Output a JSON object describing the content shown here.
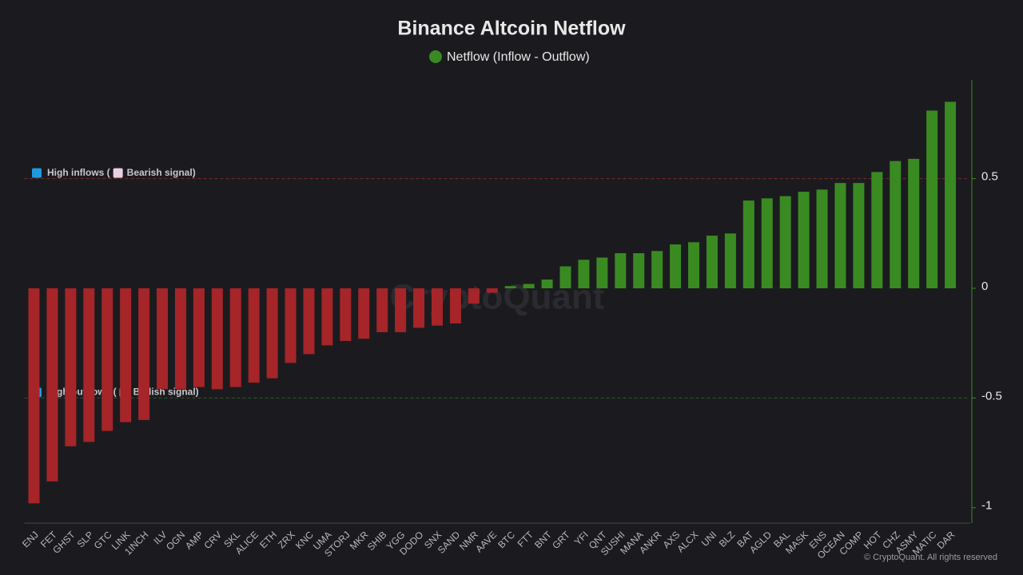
{
  "chart_data": {
    "type": "bar",
    "title": "Binance Altcoin Netflow",
    "categories": [
      "ENJ",
      "FET",
      "GHST",
      "SLP",
      "GTC",
      "LINK",
      "1INCH",
      "ILV",
      "OGN",
      "AMP",
      "CRV",
      "SKL",
      "ALICE",
      "ETH",
      "ZRX",
      "KNC",
      "UMA",
      "STORJ",
      "MKR",
      "SHIB",
      "YGG",
      "DODO",
      "SNX",
      "SAND",
      "NMR",
      "AAVE",
      "BTC",
      "FTT",
      "BNT",
      "GRT",
      "YFI",
      "QNT",
      "SUSHI",
      "MANA",
      "ANKR",
      "AXS",
      "ALCX",
      "UNI",
      "BLZ",
      "BAT",
      "AGLD",
      "BAL",
      "MASK",
      "ENS",
      "OCEAN",
      "COMP",
      "HOT",
      "CHZ",
      "ASMY",
      "MATIC",
      "DAR"
    ],
    "series": [
      {
        "name": "Netflow (Inflow - Outflow)",
        "color": "#3a8a22",
        "negative_color": "#a52528",
        "values": [
          -0.98,
          -0.88,
          -0.72,
          -0.7,
          -0.65,
          -0.61,
          -0.6,
          -0.46,
          -0.46,
          -0.45,
          -0.46,
          -0.45,
          -0.43,
          -0.41,
          -0.34,
          -0.3,
          -0.26,
          -0.24,
          -0.23,
          -0.2,
          -0.2,
          -0.18,
          -0.17,
          -0.16,
          -0.07,
          -0.02,
          0.01,
          0.02,
          0.04,
          0.1,
          0.13,
          0.14,
          0.16,
          0.16,
          0.17,
          0.2,
          0.21,
          0.24,
          0.25,
          0.4,
          0.41,
          0.42,
          0.44,
          0.45,
          0.48,
          0.48,
          0.53,
          0.58,
          0.59,
          0.81,
          0.85
        ]
      }
    ],
    "ylim": [
      -1.07,
      0.95
    ],
    "yticks": [
      0.5,
      0,
      -0.5,
      -1
    ],
    "thresholds": [
      {
        "value": 0.5,
        "color": "#7a2a2a",
        "label": "High inflows (",
        "signal": "Bearish signal)"
      },
      {
        "value": -0.5,
        "color": "#2f5a2a",
        "label": "High outflows (",
        "signal": "Bullish signal)"
      }
    ],
    "watermark": "CryptoQuant",
    "copyright": "© CryptoQuant. All rights reserved"
  }
}
